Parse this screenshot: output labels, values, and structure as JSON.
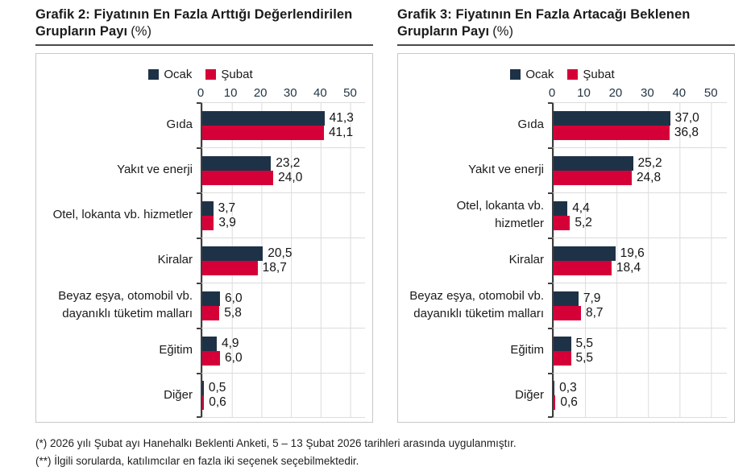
{
  "headers": [
    {
      "line1": "Grafik 2: Fiyatının En Fazla Arttığı Değerlendirilen",
      "line2": "Grupların Payı",
      "suffix": "(%)"
    },
    {
      "line1": "Grafik 3: Fiyatının En Fazla Artacağı Beklenen",
      "line2": "Grupların Payı",
      "suffix": "(%)"
    }
  ],
  "colors": {
    "ocak": "#1E3247",
    "subat": "#D50038",
    "grid": "#DCDCDC",
    "axis": "#3F3F3F",
    "box_border": "#C8C8C8",
    "title_rule": "#4A4A4A"
  },
  "chart_data": [
    {
      "type": "bar",
      "orientation": "horizontal",
      "title": "Grafik 2: Fiyatının En Fazla Arttığı Değerlendirilen Grupların Payı (%)",
      "categories": [
        "Gıda",
        "Yakıt ve enerji",
        "Otel, lokanta vb. hizmetler",
        "Kiralar",
        "Beyaz eşya, otomobil vb. dayanıklı tüketim malları",
        "Eğitim",
        "Diğer"
      ],
      "category_lines": [
        [
          "Gıda"
        ],
        [
          "Yakıt ve enerji"
        ],
        [
          "Otel, lokanta vb. hizmetler"
        ],
        [
          "Kiralar"
        ],
        [
          "Beyaz eşya, otomobil vb.",
          "dayanıklı tüketim malları"
        ],
        [
          "Eğitim"
        ],
        [
          "Diğer"
        ]
      ],
      "series": [
        {
          "name": "Ocak",
          "color": "#1E3247",
          "values": [
            41.3,
            23.2,
            3.7,
            20.5,
            6.0,
            4.9,
            0.5
          ]
        },
        {
          "name": "Şubat",
          "color": "#D50038",
          "values": [
            41.1,
            24.0,
            3.9,
            18.7,
            5.8,
            6.0,
            0.6
          ]
        }
      ],
      "xlim": [
        0,
        55
      ],
      "xticks": [
        0,
        10,
        20,
        30,
        40,
        50
      ],
      "grid": true,
      "legend_position": "top",
      "value_label_format": "comma-decimal-1"
    },
    {
      "type": "bar",
      "orientation": "horizontal",
      "title": "Grafik 3: Fiyatının En Fazla Artacağı Beklenen Grupların Payı (%)",
      "categories": [
        "Gıda",
        "Yakıt ve enerji",
        "Otel, lokanta vb. hizmetler",
        "Kiralar",
        "Beyaz eşya, otomobil vb. dayanıklı tüketim malları",
        "Eğitim",
        "Diğer"
      ],
      "category_lines": [
        [
          "Gıda"
        ],
        [
          "Yakıt ve enerji"
        ],
        [
          "Otel, lokanta vb.",
          "hizmetler"
        ],
        [
          "Kiralar"
        ],
        [
          "Beyaz eşya, otomobil vb.",
          "dayanıklı tüketim malları"
        ],
        [
          "Eğitim"
        ],
        [
          "Diğer"
        ]
      ],
      "series": [
        {
          "name": "Ocak",
          "color": "#1E3247",
          "values": [
            37.0,
            25.2,
            4.4,
            19.6,
            7.9,
            5.5,
            0.3
          ]
        },
        {
          "name": "Şubat",
          "color": "#D50038",
          "values": [
            36.8,
            24.8,
            5.2,
            18.4,
            8.7,
            5.5,
            0.6
          ]
        }
      ],
      "xlim": [
        0,
        55
      ],
      "xticks": [
        0,
        10,
        20,
        30,
        40,
        50
      ],
      "grid": true,
      "legend_position": "top",
      "value_label_format": "comma-decimal-1"
    }
  ],
  "footnotes": {
    "line1": "(*) 2026 yılı Şubat ayı Hanehalkı Beklenti Anketi, 5 – 13 Şubat 2026 tarihleri arasında uygulanmıştır.",
    "line2": "(**) İlgili sorularda, katılımcılar en fazla iki seçenek seçebilmektedir."
  }
}
